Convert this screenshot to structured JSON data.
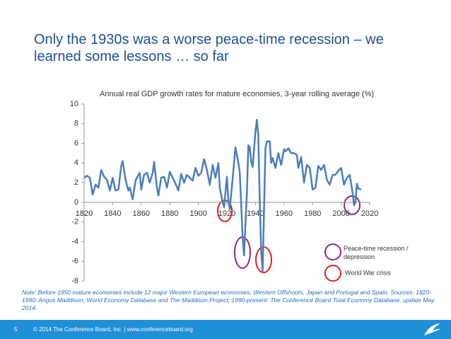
{
  "slide": {
    "title": "Only the 1930s was a worse peace-time recession  – we learned some lessons … so far",
    "note": "Note: Before 1950 mature economies include 12 major Western European economies, Western Offshoots, Japan and Portugal and Spain. Sources: 1820-1990: Angus Maddison,  World Economy Database and The Maddison Project; 1990-present: The Conference Board Total Economy Database, update  May 2014.",
    "page_number": "5",
    "footer": "© 2014 The Conference Board, Inc.   |   www.conferenceboard.org"
  },
  "chart_data": {
    "type": "line",
    "title": "Annual real GDP growth rates for mature economies, 3-year rolling average (%)",
    "color": "#4a7ebb",
    "x": [
      1820,
      1822,
      1824,
      1826,
      1828,
      1830,
      1832,
      1834,
      1836,
      1838,
      1840,
      1842,
      1844,
      1846,
      1847,
      1849,
      1851,
      1852,
      1854,
      1856,
      1858,
      1859,
      1860,
      1862,
      1864,
      1866,
      1868,
      1869,
      1871,
      1872,
      1874,
      1876,
      1878,
      1880,
      1882,
      1884,
      1886,
      1888,
      1890,
      1892,
      1894,
      1896,
      1898,
      1900,
      1902,
      1904,
      1906,
      1908,
      1910,
      1912,
      1914,
      1915,
      1917,
      1918,
      1920,
      1921,
      1922,
      1924,
      1926,
      1928,
      1929,
      1931,
      1932,
      1934,
      1935,
      1936,
      1937,
      1938,
      1940,
      1941,
      1942,
      1943,
      1944,
      1945,
      1947,
      1948,
      1950,
      1951,
      1952,
      1954,
      1956,
      1958,
      1960,
      1961,
      1963,
      1965,
      1967,
      1969,
      1970,
      1972,
      1974,
      1976,
      1978,
      1980,
      1982,
      1984,
      1986,
      1988,
      1990,
      1992,
      1994,
      1996,
      1998,
      2000,
      2002,
      2004,
      2006,
      2008,
      2009,
      2010,
      2011,
      2012,
      2014
    ],
    "values": [
      2.5,
      2.7,
      2.5,
      0.8,
      1.8,
      1.5,
      3.3,
      2.6,
      2.3,
      1.2,
      2.5,
      1.2,
      1.3,
      3.7,
      4.2,
      2.3,
      1.2,
      1.5,
      0.3,
      2.2,
      2.8,
      3.0,
      1.3,
      2.8,
      3.0,
      2.0,
      3.0,
      4.1,
      1.5,
      0.7,
      2.5,
      2.6,
      1.5,
      3.1,
      2.5,
      1.9,
      1.2,
      2.9,
      2.0,
      2.8,
      2.5,
      2.2,
      3.5,
      2.7,
      3.0,
      4.4,
      3.3,
      1.8,
      3.8,
      2.5,
      4.0,
      1.5,
      0.0,
      -0.5,
      2.6,
      0.3,
      -0.7,
      2.4,
      5.6,
      4.0,
      3.0,
      -3.5,
      -5.4,
      1.0,
      5.8,
      5.6,
      4.2,
      3.6,
      7.2,
      8.4,
      6.8,
      0.0,
      -5.0,
      -7.0,
      5.5,
      6.2,
      6.2,
      4.0,
      4.5,
      3.5,
      5.0,
      3.8,
      5.4,
      5.2,
      5.5,
      5.0,
      5.0,
      4.8,
      3.5,
      4.6,
      2.0,
      3.8,
      3.5,
      1.3,
      1.5,
      3.7,
      3.3,
      3.8,
      2.3,
      1.8,
      2.8,
      2.8,
      3.2,
      3.5,
      1.8,
      2.5,
      2.8,
      1.0,
      -0.3,
      0.0,
      1.9,
      1.4,
      1.3
    ],
    "xlim": [
      1820,
      2020
    ],
    "xticks": [
      1820,
      1840,
      1860,
      1880,
      1900,
      1920,
      1940,
      1960,
      1980,
      2000,
      2020
    ],
    "ylim": [
      -8,
      10
    ],
    "yticks": [
      10,
      8,
      6,
      4,
      2,
      0,
      -2,
      -4,
      -6,
      -8
    ],
    "legend": [
      "Peace-time recession / depression",
      "World War crisis"
    ]
  }
}
